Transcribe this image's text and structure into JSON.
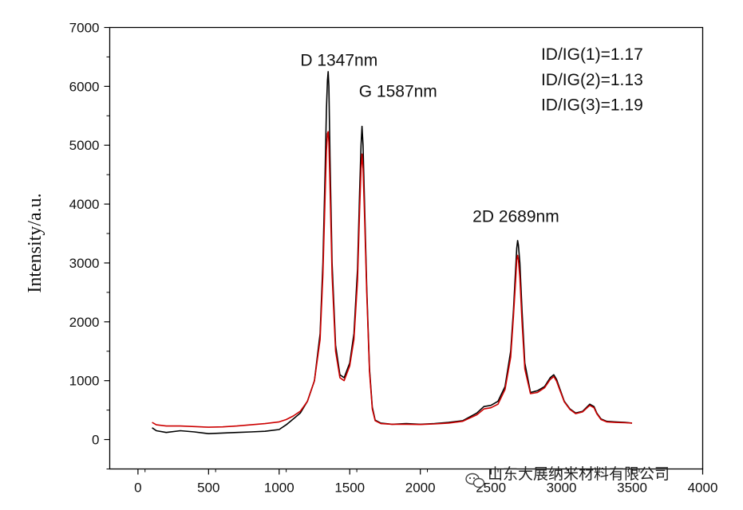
{
  "chart_data": {
    "type": "line",
    "title": "",
    "xlabel": "",
    "ylabel": "Intensity/a.u.",
    "xlim": [
      -200,
      4000
    ],
    "ylim": [
      -500,
      7000
    ],
    "x_ticks": [
      0,
      500,
      1000,
      1500,
      2000,
      2500,
      3000,
      3500,
      4000
    ],
    "y_ticks": [
      0,
      1000,
      2000,
      3000,
      4000,
      5000,
      6000,
      7000
    ],
    "grid": false,
    "legend": "none",
    "series": [
      {
        "color": "#000000",
        "x": [
          100,
          130,
          200,
          300,
          400,
          500,
          600,
          700,
          800,
          900,
          1000,
          1050,
          1100,
          1150,
          1200,
          1250,
          1290,
          1310,
          1325,
          1335,
          1342,
          1347,
          1352,
          1360,
          1375,
          1400,
          1430,
          1460,
          1500,
          1530,
          1555,
          1570,
          1580,
          1587,
          1594,
          1605,
          1620,
          1640,
          1660,
          1680,
          1720,
          1800,
          1900,
          2000,
          2100,
          2200,
          2300,
          2400,
          2450,
          2500,
          2550,
          2600,
          2640,
          2660,
          2675,
          2683,
          2689,
          2695,
          2705,
          2720,
          2740,
          2780,
          2830,
          2880,
          2920,
          2945,
          2965,
          2990,
          3020,
          3060,
          3100,
          3150,
          3200,
          3230,
          3250,
          3280,
          3320,
          3380,
          3450,
          3500
        ],
        "y": [
          200,
          150,
          120,
          150,
          130,
          100,
          110,
          120,
          130,
          140,
          170,
          250,
          350,
          450,
          650,
          1000,
          1800,
          3000,
          4500,
          5600,
          6100,
          6250,
          6000,
          4800,
          3000,
          1600,
          1100,
          1050,
          1300,
          1800,
          2900,
          4200,
          5000,
          5320,
          5000,
          4000,
          2600,
          1200,
          550,
          330,
          280,
          260,
          270,
          260,
          270,
          290,
          320,
          450,
          560,
          580,
          650,
          900,
          1500,
          2200,
          2900,
          3250,
          3380,
          3300,
          3000,
          2200,
          1300,
          800,
          830,
          900,
          1050,
          1100,
          1020,
          850,
          650,
          520,
          450,
          480,
          600,
          560,
          450,
          350,
          310,
          300,
          290,
          280
        ]
      },
      {
        "color": "#cc0000",
        "x": [
          100,
          130,
          200,
          300,
          400,
          500,
          600,
          700,
          800,
          900,
          1000,
          1050,
          1100,
          1150,
          1200,
          1250,
          1290,
          1310,
          1325,
          1335,
          1342,
          1347,
          1352,
          1360,
          1375,
          1400,
          1430,
          1460,
          1500,
          1530,
          1555,
          1570,
          1580,
          1587,
          1594,
          1605,
          1620,
          1640,
          1660,
          1680,
          1720,
          1800,
          1900,
          2000,
          2100,
          2200,
          2300,
          2400,
          2450,
          2500,
          2550,
          2600,
          2640,
          2660,
          2675,
          2683,
          2689,
          2695,
          2705,
          2720,
          2740,
          2780,
          2830,
          2880,
          2920,
          2945,
          2965,
          2990,
          3020,
          3060,
          3100,
          3150,
          3200,
          3230,
          3250,
          3280,
          3320,
          3380,
          3450,
          3500
        ],
        "y": [
          290,
          250,
          230,
          230,
          220,
          210,
          215,
          230,
          250,
          270,
          300,
          340,
          400,
          480,
          650,
          1000,
          1700,
          2800,
          4100,
          4900,
          5200,
          5230,
          5050,
          4300,
          2800,
          1500,
          1050,
          1000,
          1250,
          1700,
          2700,
          3900,
          4600,
          4850,
          4600,
          3800,
          2500,
          1150,
          520,
          320,
          270,
          260,
          260,
          255,
          265,
          280,
          310,
          420,
          520,
          540,
          600,
          850,
          1400,
          2100,
          2700,
          3050,
          3130,
          3050,
          2750,
          2000,
          1200,
          780,
          800,
          880,
          1020,
          1070,
          990,
          830,
          640,
          510,
          440,
          470,
          580,
          540,
          440,
          340,
          300,
          290,
          285,
          280
        ]
      }
    ],
    "annotations": [
      {
        "text": "D 1347nm",
        "x": 1150,
        "y": 6350
      },
      {
        "text": "G 1587nm",
        "x": 1565,
        "y": 5820
      },
      {
        "text": "2D 2689nm",
        "x": 2370,
        "y": 3700
      },
      {
        "text": "ID/IG(1)=1.17",
        "x": 2855,
        "y": 6450
      },
      {
        "text": "ID/IG(2)=1.13",
        "x": 2855,
        "y": 6020
      },
      {
        "text": "ID/IG(3)=1.19",
        "x": 2855,
        "y": 5590
      }
    ]
  },
  "watermark": {
    "text": "山东大展纳米材料有限公司",
    "icon": "wechat-icon"
  }
}
